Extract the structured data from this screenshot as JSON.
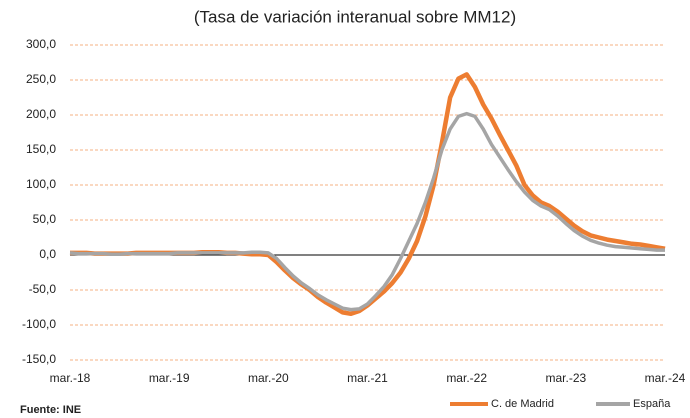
{
  "chart_data": {
    "type": "line",
    "subtitle": "(Tasa de variación interanual sobre MM12)",
    "source": "Fuente: INE",
    "categories": [
      "mar.-18",
      null,
      null,
      null,
      null,
      null,
      null,
      null,
      null,
      null,
      null,
      null,
      "mar.-19",
      null,
      null,
      null,
      null,
      null,
      null,
      null,
      null,
      null,
      null,
      null,
      "mar.-20",
      null,
      null,
      null,
      null,
      null,
      null,
      null,
      null,
      null,
      null,
      null,
      "mar.-21",
      null,
      null,
      null,
      null,
      null,
      null,
      null,
      null,
      null,
      null,
      null,
      "mar.-22",
      null,
      null,
      null,
      null,
      null,
      null,
      null,
      null,
      null,
      null,
      null,
      "mar.-23",
      null,
      null,
      null,
      null,
      null,
      null,
      null,
      null,
      null,
      null,
      null,
      "mar.-24"
    ],
    "series": [
      {
        "name": "C. de Madrid",
        "color": "#ed7d31",
        "values": [
          3,
          3,
          3,
          2,
          2,
          2,
          2,
          2,
          3,
          3,
          3,
          3,
          3,
          3,
          3,
          3,
          4,
          4,
          4,
          3,
          3,
          2,
          1,
          1,
          0,
          -10,
          -22,
          -33,
          -42,
          -50,
          -60,
          -68,
          -75,
          -82,
          -84,
          -80,
          -72,
          -62,
          -52,
          -40,
          -25,
          -5,
          20,
          55,
          100,
          160,
          225,
          252,
          258,
          240,
          215,
          195,
          172,
          150,
          128,
          100,
          85,
          75,
          70,
          62,
          52,
          42,
          34,
          28,
          25,
          22,
          20,
          18,
          16,
          15,
          13,
          11,
          9
        ]
      },
      {
        "name": "España",
        "color": "#a5a5a5",
        "values": [
          3,
          2,
          2,
          2,
          2,
          1,
          1,
          2,
          2,
          2,
          2,
          2,
          2,
          3,
          3,
          3,
          3,
          3,
          3,
          3,
          3,
          3,
          4,
          4,
          3,
          -5,
          -18,
          -30,
          -40,
          -48,
          -57,
          -64,
          -70,
          -76,
          -78,
          -77,
          -70,
          -58,
          -45,
          -28,
          -5,
          20,
          45,
          75,
          110,
          150,
          180,
          198,
          202,
          198,
          180,
          158,
          140,
          122,
          105,
          90,
          78,
          70,
          65,
          56,
          45,
          35,
          27,
          21,
          17,
          14,
          12,
          11,
          10,
          9,
          8,
          7,
          7
        ]
      }
    ],
    "ylim": [
      -150,
      300
    ],
    "yticks": [
      {
        "value": -150,
        "label": "-150,0"
      },
      {
        "value": -100,
        "label": "-100,0"
      },
      {
        "value": -50,
        "label": "-50,0"
      },
      {
        "value": 0,
        "label": "0,0"
      },
      {
        "value": 50,
        "label": "50,0"
      },
      {
        "value": 100,
        "label": "100,0"
      },
      {
        "value": 150,
        "label": "150,0"
      },
      {
        "value": 200,
        "label": "200,0"
      },
      {
        "value": 250,
        "label": "250,0"
      },
      {
        "value": 300,
        "label": "300,0"
      }
    ],
    "grid": true,
    "legend": "bottom-right"
  }
}
